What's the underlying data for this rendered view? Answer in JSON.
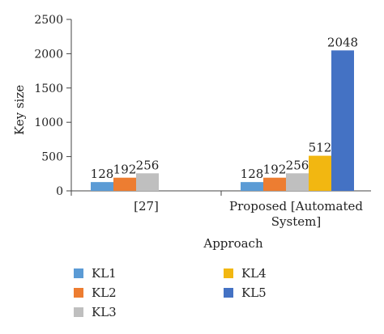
{
  "chart_data": {
    "type": "bar",
    "xlabel": "Approach",
    "ylabel": "Key size",
    "ylim": [
      0,
      2500
    ],
    "yticks": [
      0,
      500,
      1000,
      1500,
      2000,
      2500
    ],
    "grid": false,
    "legend_position": "bottom",
    "categories": [
      {
        "lines": [
          "[27]"
        ]
      },
      {
        "lines": [
          "Proposed [Automated",
          "System]"
        ]
      }
    ],
    "series": [
      {
        "name": "KL1",
        "color": "#5B9BD5",
        "values": [
          128,
          128
        ],
        "labels": [
          "128",
          "128"
        ]
      },
      {
        "name": "KL2",
        "color": "#ED7D31",
        "values": [
          192,
          192
        ],
        "labels": [
          "192",
          "192"
        ]
      },
      {
        "name": "KL3",
        "color": "#BFBFBF",
        "values": [
          256,
          256
        ],
        "labels": [
          "256",
          "256"
        ]
      },
      {
        "name": "KL4",
        "color": "#F2B711",
        "values": [
          null,
          512
        ],
        "labels": [
          "",
          "512"
        ]
      },
      {
        "name": "KL5",
        "color": "#4472C4",
        "values": [
          null,
          2048
        ],
        "labels": [
          "",
          "2048"
        ]
      }
    ]
  }
}
